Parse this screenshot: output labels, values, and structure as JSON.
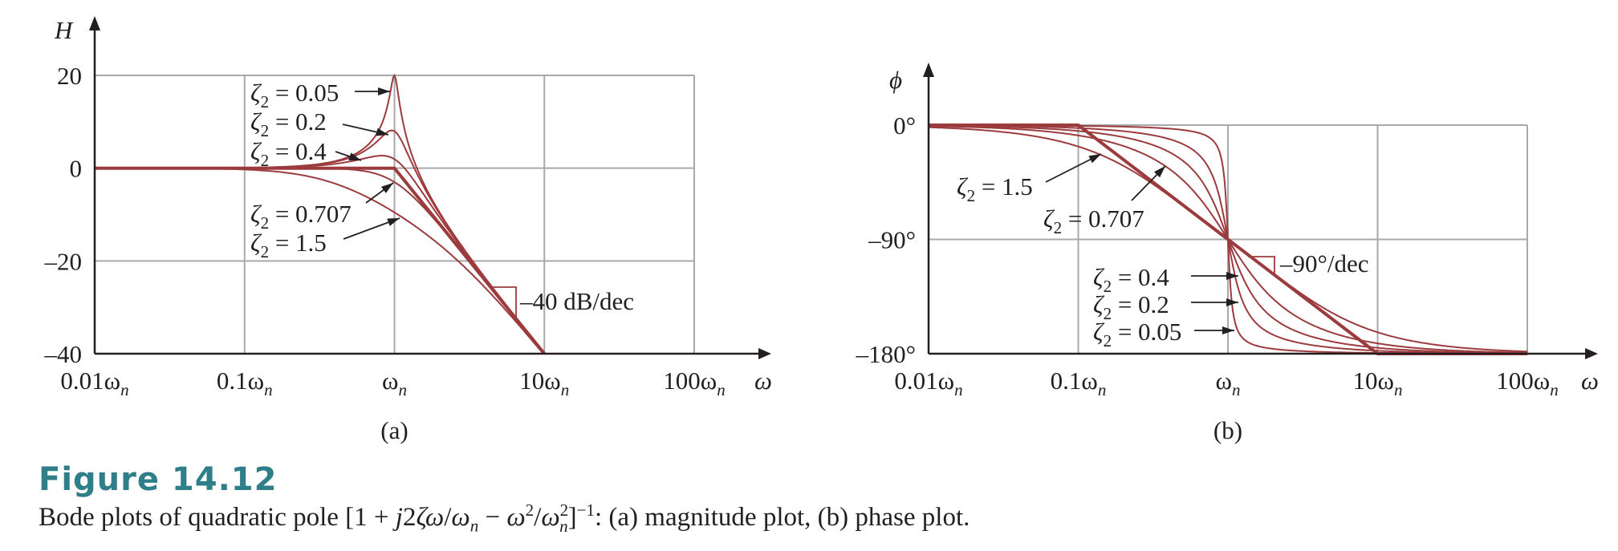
{
  "chart_data": [
    {
      "type": "line",
      "panel_label": "(a)",
      "ylabel": "H",
      "xlabel": "ω",
      "x_scale": "log",
      "x_range": [
        0.01,
        100
      ],
      "y_range": [
        -40,
        20
      ],
      "y_ticks": [
        {
          "value": 20,
          "label": "20"
        },
        {
          "value": 0,
          "label": "0"
        },
        {
          "value": -20,
          "label": "–20"
        },
        {
          "value": -40,
          "label": "–40"
        }
      ],
      "x_ticks": [
        {
          "value": 0.01,
          "main": "0.01ω",
          "sub": "n"
        },
        {
          "value": 0.1,
          "main": "0.1ω",
          "sub": "n"
        },
        {
          "value": 1,
          "main": "ω",
          "sub": "n"
        },
        {
          "value": 10,
          "main": "10ω",
          "sub": "n"
        },
        {
          "value": 100,
          "main": "100ω",
          "sub": "n"
        }
      ],
      "grid": true,
      "quantity": "magnitude",
      "series": [
        {
          "name": "ζ2 = 0.05",
          "zeta": 0.05
        },
        {
          "name": "ζ2 = 0.2",
          "zeta": 0.2
        },
        {
          "name": "ζ2 = 0.4",
          "zeta": 0.4
        },
        {
          "name": "ζ2 = 0.707",
          "zeta": 0.707
        },
        {
          "name": "ζ2 = 1.5",
          "zeta": 1.5
        }
      ],
      "asymptote": {
        "points": [
          [
            0.01,
            0
          ],
          [
            1,
            0
          ],
          [
            10,
            -40
          ]
        ],
        "label": "–40 dB/dec"
      },
      "annotations": [
        {
          "label": "ζ2 = 0.05",
          "main": "ζ",
          "sub": "2",
          "rest": " = 0.05"
        },
        {
          "label": "ζ2 = 0.2",
          "main": "ζ",
          "sub": "2",
          "rest": " = 0.2"
        },
        {
          "label": "ζ2 = 0.4",
          "main": "ζ",
          "sub": "2",
          "rest": " = 0.4"
        },
        {
          "label": "ζ2 = 0.707",
          "main": "ζ",
          "sub": "2",
          "rest": " = 0.707"
        },
        {
          "label": "ζ2 = 1.5",
          "main": "ζ",
          "sub": "2",
          "rest": " = 1.5"
        }
      ]
    },
    {
      "type": "line",
      "panel_label": "(b)",
      "ylabel": "ϕ",
      "xlabel": "ω",
      "x_scale": "log",
      "x_range": [
        0.01,
        100
      ],
      "y_range": [
        -180,
        0
      ],
      "y_ticks": [
        {
          "value": 0,
          "label": "0°"
        },
        {
          "value": -90,
          "label": "–90°"
        },
        {
          "value": -180,
          "label": "–180°"
        }
      ],
      "x_ticks": [
        {
          "value": 0.01,
          "main": "0.01ω",
          "sub": "n"
        },
        {
          "value": 0.1,
          "main": "0.1ω",
          "sub": "n"
        },
        {
          "value": 1,
          "main": "ω",
          "sub": "n"
        },
        {
          "value": 10,
          "main": "10ω",
          "sub": "n"
        },
        {
          "value": 100,
          "main": "100ω",
          "sub": "n"
        }
      ],
      "grid": true,
      "quantity": "phase",
      "series": [
        {
          "name": "ζ2 = 0.05",
          "zeta": 0.05
        },
        {
          "name": "ζ2 = 0.2",
          "zeta": 0.2
        },
        {
          "name": "ζ2 = 0.4",
          "zeta": 0.4
        },
        {
          "name": "ζ2 = 0.707",
          "zeta": 0.707
        },
        {
          "name": "ζ2 = 1.5",
          "zeta": 1.5
        }
      ],
      "asymptote": {
        "points": [
          [
            0.01,
            0
          ],
          [
            0.1,
            0
          ],
          [
            10,
            -180
          ],
          [
            100,
            -180
          ]
        ],
        "label": "–90°/dec"
      },
      "annotations": [
        {
          "label": "ζ2 = 1.5",
          "main": "ζ",
          "sub": "2",
          "rest": " = 1.5"
        },
        {
          "label": "ζ2 = 0.707",
          "main": "ζ",
          "sub": "2",
          "rest": " = 0.707"
        },
        {
          "label": "ζ2 = 0.4",
          "main": "ζ",
          "sub": "2",
          "rest": " = 0.4"
        },
        {
          "label": "ζ2 = 0.2",
          "main": "ζ",
          "sub": "2",
          "rest": " = 0.2"
        },
        {
          "label": "ζ2 = 0.05",
          "main": "ζ",
          "sub": "2",
          "rest": " = 0.05"
        }
      ]
    }
  ],
  "colors": {
    "curve": "#9c3b3e",
    "grid": "#a7a9ac",
    "axis": "#231f20",
    "title": "#2f7f8a"
  },
  "figure": {
    "title": "Figure 14.12",
    "caption": {
      "p1": "Bode plots of quadratic pole [1 + ",
      "j2": "j",
      "p2": "2",
      "zeta": "ζ",
      "omega1": "ω",
      "slash1": "/",
      "omegan1": "ω",
      "n1": "n",
      "minus": " − ",
      "omega2": "ω",
      "sq1": "2",
      "slash2": "/",
      "omegan2": "ω",
      "sq2": "2",
      "n2": "n",
      "close": "]",
      "inv": "−1",
      "p3": ": (a) magnitude plot, (b) phase plot."
    }
  }
}
